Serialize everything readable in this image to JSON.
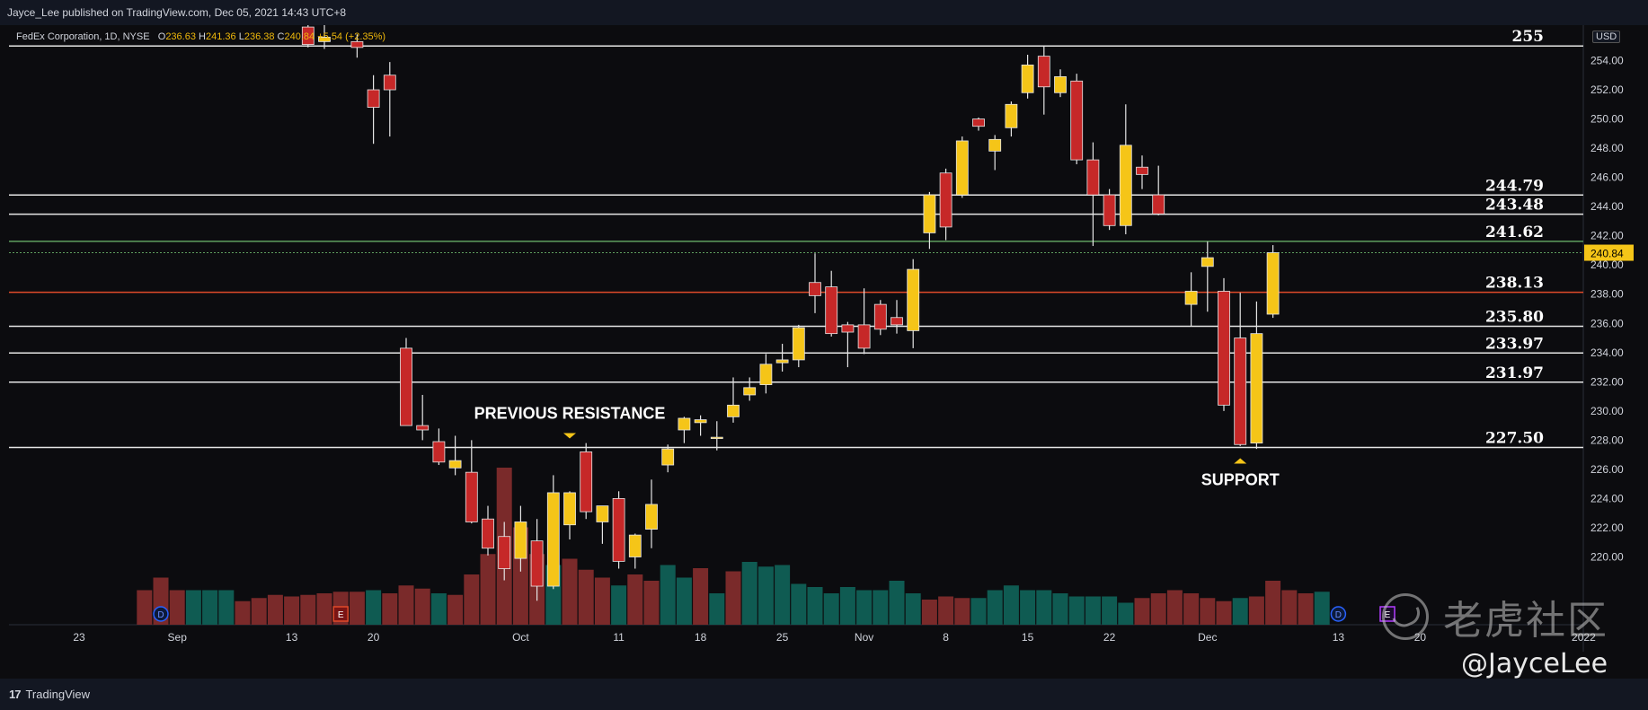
{
  "header": {
    "published_line": "Jayce_Lee published on TradingView.com, Dec 05, 2021 14:43 UTC+8"
  },
  "legend": {
    "symbol": "FedEx Corporation, 1D, NYSE",
    "open_key": "O",
    "open": "236.63",
    "high_key": "H",
    "high": "241.36",
    "low_key": "L",
    "low": "236.38",
    "close_key": "C",
    "close": "240.84",
    "change": "+5.54 (+2.35%)"
  },
  "currency_label": "USD",
  "footer": {
    "brand": "TradingView"
  },
  "watermark": {
    "text": "老虎社区",
    "handle": "@JayceLee"
  },
  "colors": {
    "background": "#0c0c0f",
    "up_candle": "#f5c518",
    "down_candle": "#c62828",
    "vol_up": "#0f5b52",
    "vol_down": "#7a2a2a",
    "level_line": "#e6e6e6",
    "red_line": "#e04a2a",
    "green_line": "#5f9e5f",
    "last_price": "#f5c518"
  },
  "chart_data": {
    "type": "candlestick",
    "title": "FedEx Corporation, 1D, NYSE",
    "ylim": [
      219.0,
      256.0
    ],
    "y_ticks": [
      220.0,
      222.0,
      224.0,
      226.0,
      228.0,
      230.0,
      232.0,
      234.0,
      236.0,
      238.0,
      240.0,
      242.0,
      244.0,
      246.0,
      248.0,
      250.0,
      252.0,
      254.0
    ],
    "x_tick_labels": [
      {
        "label": "23",
        "bar": -15
      },
      {
        "label": "Sep",
        "bar": -9
      },
      {
        "label": "13",
        "bar": -2
      },
      {
        "label": "20",
        "bar": 3
      },
      {
        "label": "Oct",
        "bar": 12
      },
      {
        "label": "11",
        "bar": 18
      },
      {
        "label": "18",
        "bar": 23
      },
      {
        "label": "25",
        "bar": 28
      },
      {
        "label": "Nov",
        "bar": 33
      },
      {
        "label": "8",
        "bar": 38
      },
      {
        "label": "15",
        "bar": 43
      },
      {
        "label": "22",
        "bar": 48
      },
      {
        "label": "Dec",
        "bar": 54
      },
      {
        "label": "13",
        "bar": 62
      },
      {
        "label": "20",
        "bar": 67
      },
      {
        "label": "2022",
        "bar": 77
      }
    ],
    "candles": [
      {
        "i": -1,
        "o": 256.3,
        "h": 257.0,
        "l": 254.9,
        "c": 255.1
      },
      {
        "i": 0,
        "o": 255.3,
        "h": 257.0,
        "l": 254.8,
        "c": 255.6
      },
      {
        "i": 2,
        "o": 255.3,
        "h": 255.8,
        "l": 254.2,
        "c": 254.9
      },
      {
        "i": 3,
        "o": 252.0,
        "h": 253.0,
        "l": 248.3,
        "c": 250.8
      },
      {
        "i": 4,
        "o": 253.0,
        "h": 253.9,
        "l": 248.8,
        "c": 252.0
      },
      {
        "i": 5,
        "o": 234.3,
        "h": 235.0,
        "l": 229.0,
        "c": 229.0
      },
      {
        "i": 6,
        "o": 229.0,
        "h": 231.1,
        "l": 228.0,
        "c": 228.7
      },
      {
        "i": 7,
        "o": 227.9,
        "h": 228.8,
        "l": 226.3,
        "c": 226.5
      },
      {
        "i": 8,
        "o": 226.1,
        "h": 228.3,
        "l": 225.6,
        "c": 226.6
      },
      {
        "i": 9,
        "o": 225.8,
        "h": 228.0,
        "l": 222.3,
        "c": 222.4
      },
      {
        "i": 10,
        "o": 222.6,
        "h": 223.5,
        "l": 220.1,
        "c": 220.6
      },
      {
        "i": 11,
        "o": 221.4,
        "h": 222.4,
        "l": 218.4,
        "c": 219.2
      },
      {
        "i": 12,
        "o": 219.9,
        "h": 223.5,
        "l": 219.0,
        "c": 222.4
      },
      {
        "i": 13,
        "o": 221.1,
        "h": 222.6,
        "l": 217.0,
        "c": 218.0
      },
      {
        "i": 14,
        "o": 218.0,
        "h": 225.6,
        "l": 217.8,
        "c": 224.4
      },
      {
        "i": 15,
        "o": 222.2,
        "h": 224.5,
        "l": 221.2,
        "c": 224.4
      },
      {
        "i": 16,
        "o": 227.2,
        "h": 227.8,
        "l": 222.6,
        "c": 223.1
      },
      {
        "i": 17,
        "o": 222.4,
        "h": 223.5,
        "l": 220.9,
        "c": 223.5
      },
      {
        "i": 18,
        "o": 224.0,
        "h": 224.5,
        "l": 219.2,
        "c": 219.7
      },
      {
        "i": 19,
        "o": 220.0,
        "h": 221.6,
        "l": 219.2,
        "c": 221.5
      },
      {
        "i": 20,
        "o": 221.9,
        "h": 225.3,
        "l": 220.6,
        "c": 223.6
      },
      {
        "i": 21,
        "o": 226.3,
        "h": 227.7,
        "l": 225.8,
        "c": 227.4
      },
      {
        "i": 22,
        "o": 228.7,
        "h": 229.6,
        "l": 227.8,
        "c": 229.5
      },
      {
        "i": 23,
        "o": 229.2,
        "h": 229.7,
        "l": 228.3,
        "c": 229.4
      },
      {
        "i": 24,
        "o": 228.2,
        "h": 229.3,
        "l": 227.3,
        "c": 228.2
      },
      {
        "i": 25,
        "o": 229.6,
        "h": 232.3,
        "l": 229.2,
        "c": 230.4
      },
      {
        "i": 26,
        "o": 231.1,
        "h": 232.3,
        "l": 230.7,
        "c": 231.6
      },
      {
        "i": 27,
        "o": 231.8,
        "h": 233.9,
        "l": 231.2,
        "c": 233.2
      },
      {
        "i": 28,
        "o": 233.3,
        "h": 234.6,
        "l": 232.7,
        "c": 233.5
      },
      {
        "i": 29,
        "o": 233.5,
        "h": 235.9,
        "l": 233.0,
        "c": 235.7
      },
      {
        "i": 30,
        "o": 238.8,
        "h": 240.8,
        "l": 236.7,
        "c": 237.9
      },
      {
        "i": 31,
        "o": 238.5,
        "h": 239.6,
        "l": 235.1,
        "c": 235.3
      },
      {
        "i": 32,
        "o": 235.9,
        "h": 236.1,
        "l": 233.0,
        "c": 235.4
      },
      {
        "i": 33,
        "o": 235.9,
        "h": 238.4,
        "l": 233.9,
        "c": 234.3
      },
      {
        "i": 34,
        "o": 237.3,
        "h": 237.6,
        "l": 235.2,
        "c": 235.6
      },
      {
        "i": 35,
        "o": 236.4,
        "h": 237.6,
        "l": 235.3,
        "c": 235.9
      },
      {
        "i": 36,
        "o": 235.5,
        "h": 240.4,
        "l": 234.3,
        "c": 239.7
      },
      {
        "i": 37,
        "o": 242.2,
        "h": 245.0,
        "l": 241.1,
        "c": 244.8
      },
      {
        "i": 38,
        "o": 246.3,
        "h": 246.6,
        "l": 241.7,
        "c": 242.6
      },
      {
        "i": 39,
        "o": 244.8,
        "h": 248.8,
        "l": 244.6,
        "c": 248.5
      },
      {
        "i": 40,
        "o": 250.0,
        "h": 250.1,
        "l": 249.2,
        "c": 249.5
      },
      {
        "i": 41,
        "o": 247.8,
        "h": 248.9,
        "l": 246.5,
        "c": 248.6
      },
      {
        "i": 42,
        "o": 249.4,
        "h": 251.2,
        "l": 248.8,
        "c": 251.0
      },
      {
        "i": 43,
        "o": 251.8,
        "h": 254.4,
        "l": 251.4,
        "c": 253.7
      },
      {
        "i": 44,
        "o": 254.3,
        "h": 255.0,
        "l": 250.3,
        "c": 252.2
      },
      {
        "i": 45,
        "o": 251.8,
        "h": 253.4,
        "l": 251.5,
        "c": 252.9
      },
      {
        "i": 46,
        "o": 252.6,
        "h": 253.1,
        "l": 246.9,
        "c": 247.2
      },
      {
        "i": 47,
        "o": 247.2,
        "h": 248.4,
        "l": 241.3,
        "c": 244.8
      },
      {
        "i": 48,
        "o": 244.8,
        "h": 245.2,
        "l": 242.4,
        "c": 242.7
      },
      {
        "i": 49,
        "o": 242.7,
        "h": 251.0,
        "l": 242.1,
        "c": 248.2
      },
      {
        "i": 50,
        "o": 246.7,
        "h": 247.5,
        "l": 245.2,
        "c": 246.2
      },
      {
        "i": 51,
        "o": 244.8,
        "h": 246.8,
        "l": 243.4,
        "c": 243.5
      },
      {
        "i": 53,
        "o": 237.3,
        "h": 239.5,
        "l": 235.8,
        "c": 238.2
      },
      {
        "i": 54,
        "o": 239.9,
        "h": 241.6,
        "l": 236.8,
        "c": 240.5
      },
      {
        "i": 55,
        "o": 238.2,
        "h": 239.1,
        "l": 230.0,
        "c": 230.4
      },
      {
        "i": 56,
        "o": 235.0,
        "h": 238.1,
        "l": 227.6,
        "c": 227.7
      },
      {
        "i": 57,
        "o": 227.8,
        "h": 237.5,
        "l": 227.4,
        "c": 235.3
      },
      {
        "i": 58,
        "o": 236.63,
        "h": 241.36,
        "l": 236.38,
        "c": 240.84
      }
    ],
    "volume": [
      {
        "i": -11,
        "v": 0.22,
        "d": 1
      },
      {
        "i": -10,
        "v": 0.3,
        "d": 1
      },
      {
        "i": -9,
        "v": 0.22,
        "d": 1
      },
      {
        "i": -8,
        "v": 0.22,
        "d": 0
      },
      {
        "i": -7,
        "v": 0.22,
        "d": 0
      },
      {
        "i": -6,
        "v": 0.22,
        "d": 0
      },
      {
        "i": -5,
        "v": 0.15,
        "d": 1
      },
      {
        "i": -4,
        "v": 0.17,
        "d": 1
      },
      {
        "i": -3,
        "v": 0.19,
        "d": 1
      },
      {
        "i": -2,
        "v": 0.18,
        "d": 1
      },
      {
        "i": -1,
        "v": 0.19,
        "d": 1
      },
      {
        "i": 0,
        "v": 0.2,
        "d": 1
      },
      {
        "i": 1,
        "v": 0.21,
        "d": 1
      },
      {
        "i": 2,
        "v": 0.21,
        "d": 1
      },
      {
        "i": 3,
        "v": 0.22,
        "d": 0
      },
      {
        "i": 4,
        "v": 0.2,
        "d": 1
      },
      {
        "i": 5,
        "v": 0.25,
        "d": 1
      },
      {
        "i": 6,
        "v": 0.23,
        "d": 1
      },
      {
        "i": 7,
        "v": 0.2,
        "d": 0
      },
      {
        "i": 8,
        "v": 0.19,
        "d": 1
      },
      {
        "i": 9,
        "v": 0.32,
        "d": 1
      },
      {
        "i": 10,
        "v": 0.45,
        "d": 1
      },
      {
        "i": 11,
        "v": 1.0,
        "d": 1
      },
      {
        "i": 12,
        "v": 0.62,
        "d": 1
      },
      {
        "i": 13,
        "v": 0.45,
        "d": 1
      },
      {
        "i": 14,
        "v": 0.38,
        "d": 0
      },
      {
        "i": 15,
        "v": 0.42,
        "d": 1
      },
      {
        "i": 16,
        "v": 0.35,
        "d": 1
      },
      {
        "i": 17,
        "v": 0.3,
        "d": 1
      },
      {
        "i": 18,
        "v": 0.25,
        "d": 0
      },
      {
        "i": 19,
        "v": 0.32,
        "d": 1
      },
      {
        "i": 20,
        "v": 0.28,
        "d": 1
      },
      {
        "i": 21,
        "v": 0.38,
        "d": 0
      },
      {
        "i": 22,
        "v": 0.3,
        "d": 0
      },
      {
        "i": 23,
        "v": 0.36,
        "d": 1
      },
      {
        "i": 24,
        "v": 0.2,
        "d": 0
      },
      {
        "i": 25,
        "v": 0.34,
        "d": 1
      },
      {
        "i": 26,
        "v": 0.4,
        "d": 0
      },
      {
        "i": 27,
        "v": 0.37,
        "d": 0
      },
      {
        "i": 28,
        "v": 0.38,
        "d": 0
      },
      {
        "i": 29,
        "v": 0.26,
        "d": 0
      },
      {
        "i": 30,
        "v": 0.24,
        "d": 0
      },
      {
        "i": 31,
        "v": 0.2,
        "d": 0
      },
      {
        "i": 32,
        "v": 0.24,
        "d": 0
      },
      {
        "i": 33,
        "v": 0.22,
        "d": 0
      },
      {
        "i": 34,
        "v": 0.22,
        "d": 0
      },
      {
        "i": 35,
        "v": 0.28,
        "d": 0
      },
      {
        "i": 36,
        "v": 0.2,
        "d": 0
      },
      {
        "i": 37,
        "v": 0.16,
        "d": 1
      },
      {
        "i": 38,
        "v": 0.18,
        "d": 1
      },
      {
        "i": 39,
        "v": 0.17,
        "d": 1
      },
      {
        "i": 40,
        "v": 0.17,
        "d": 0
      },
      {
        "i": 41,
        "v": 0.22,
        "d": 0
      },
      {
        "i": 42,
        "v": 0.25,
        "d": 0
      },
      {
        "i": 43,
        "v": 0.22,
        "d": 0
      },
      {
        "i": 44,
        "v": 0.22,
        "d": 0
      },
      {
        "i": 45,
        "v": 0.2,
        "d": 0
      },
      {
        "i": 46,
        "v": 0.18,
        "d": 0
      },
      {
        "i": 47,
        "v": 0.18,
        "d": 0
      },
      {
        "i": 48,
        "v": 0.18,
        "d": 0
      },
      {
        "i": 49,
        "v": 0.14,
        "d": 0
      },
      {
        "i": 50,
        "v": 0.17,
        "d": 1
      },
      {
        "i": 51,
        "v": 0.2,
        "d": 1
      },
      {
        "i": 52,
        "v": 0.22,
        "d": 1
      },
      {
        "i": 53,
        "v": 0.2,
        "d": 1
      },
      {
        "i": 54,
        "v": 0.17,
        "d": 1
      },
      {
        "i": 55,
        "v": 0.15,
        "d": 1
      },
      {
        "i": 56,
        "v": 0.17,
        "d": 0
      },
      {
        "i": 57,
        "v": 0.18,
        "d": 1
      },
      {
        "i": 58,
        "v": 0.28,
        "d": 1
      },
      {
        "i": 59,
        "v": 0.22,
        "d": 1
      },
      {
        "i": 60,
        "v": 0.2,
        "d": 1
      },
      {
        "i": 61,
        "v": 0.21,
        "d": 0
      }
    ],
    "horizontal_levels": [
      {
        "value": 255.0,
        "label": "255",
        "color": "#e6e6e6"
      },
      {
        "value": 244.79,
        "label": "244.79",
        "color": "#e6e6e6"
      },
      {
        "value": 243.48,
        "label": "243.48",
        "color": "#e6e6e6"
      },
      {
        "value": 241.62,
        "label": "241.62",
        "color": "#5f9e5f"
      },
      {
        "value": 238.13,
        "label": "238.13",
        "color": "#e04a2a"
      },
      {
        "value": 235.8,
        "label": "235.80",
        "color": "#e6e6e6"
      },
      {
        "value": 233.97,
        "label": "233.97",
        "color": "#e6e6e6"
      },
      {
        "value": 231.97,
        "label": "231.97",
        "color": "#e6e6e6"
      },
      {
        "value": 227.5,
        "label": "227.50",
        "color": "#e6e6e6"
      }
    ],
    "last_price": {
      "value": 240.84,
      "label": "240.84"
    },
    "annotations": [
      {
        "text": "PREVIOUS RESISTANCE",
        "bar": 15,
        "value": 227.5,
        "arrow": "down"
      },
      {
        "text": "SUPPORT",
        "bar": 56,
        "value": 227.5,
        "arrow": "up"
      }
    ],
    "events": [
      {
        "text": "D",
        "bar": -10,
        "type": "dividend"
      },
      {
        "text": "E",
        "bar": 1,
        "type": "earnings"
      },
      {
        "text": "D",
        "bar": 62,
        "type": "dividend"
      },
      {
        "text": "E",
        "bar": 65,
        "type": "earnings"
      }
    ]
  }
}
